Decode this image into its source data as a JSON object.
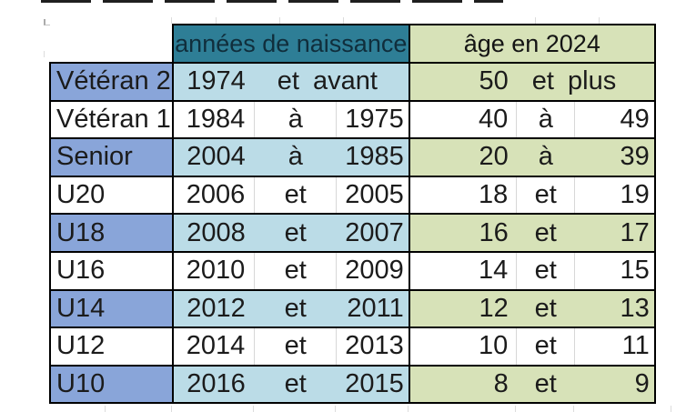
{
  "table": {
    "header": {
      "birth_years_label": "années de naissance",
      "age_label": "âge en 2024"
    },
    "rows": [
      {
        "category": "Vétéran 2",
        "birth_from": "1974",
        "birth_link": "et",
        "birth_to": "avant",
        "age_from": "50",
        "age_link": "et",
        "age_to": "plus",
        "shaded": true
      },
      {
        "category": "Vétéran 1",
        "birth_from": "1984",
        "birth_link": "à",
        "birth_to": "1975",
        "age_from": "40",
        "age_link": "à",
        "age_to": "49",
        "shaded": false
      },
      {
        "category": "Senior",
        "birth_from": "2004",
        "birth_link": "à",
        "birth_to": "1985",
        "age_from": "20",
        "age_link": "à",
        "age_to": "39",
        "shaded": true
      },
      {
        "category": "U20",
        "birth_from": "2006",
        "birth_link": "et",
        "birth_to": "2005",
        "age_from": "18",
        "age_link": "et",
        "age_to": "19",
        "shaded": false
      },
      {
        "category": "U18",
        "birth_from": "2008",
        "birth_link": "et",
        "birth_to": "2007",
        "age_from": "16",
        "age_link": "et",
        "age_to": "17",
        "shaded": true
      },
      {
        "category": "U16",
        "birth_from": "2010",
        "birth_link": "et",
        "birth_to": "2009",
        "age_from": "14",
        "age_link": "et",
        "age_to": "15",
        "shaded": false
      },
      {
        "category": "U14",
        "birth_from": "2012",
        "birth_link": "et",
        "birth_to": "2011",
        "age_from": "12",
        "age_link": "et",
        "age_to": "13",
        "shaded": true
      },
      {
        "category": "U12",
        "birth_from": "2014",
        "birth_link": "et",
        "birth_to": "2013",
        "age_from": "10",
        "age_link": "et",
        "age_to": "11",
        "shaded": false
      },
      {
        "category": "U10",
        "birth_from": "2016",
        "birth_link": "et",
        "birth_to": "2015",
        "age_from": "8",
        "age_link": "et",
        "age_to": "9",
        "shaded": true
      }
    ],
    "colors": {
      "header_teal": "#2E7E96",
      "header_green": "#D7E2B8",
      "label_blue": "#89A5D9",
      "years_cyan": "#BBDCE7",
      "age_green": "#D7E2B8",
      "row_white": "#FFFFFF",
      "border_black": "#000000"
    }
  }
}
